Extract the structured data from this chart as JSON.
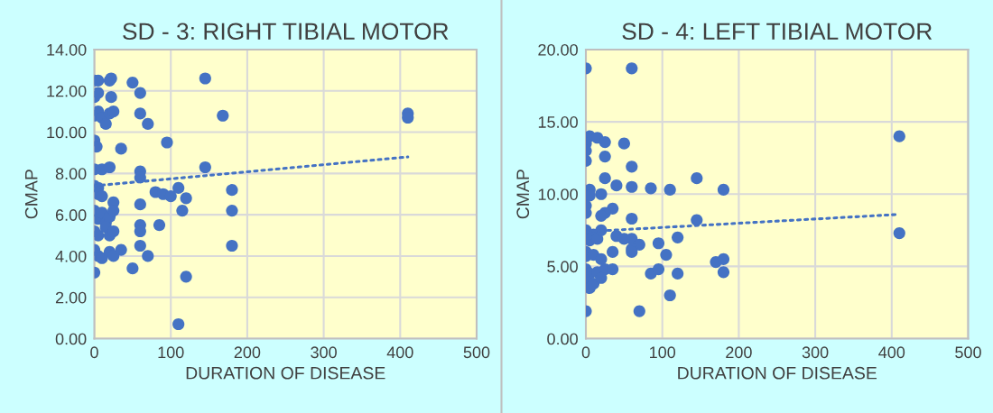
{
  "chart_data": [
    {
      "type": "scatter",
      "title": "SD - 3: RIGHT TIBIAL MOTOR",
      "xlabel": "DURATION OF DISEASE",
      "ylabel": "CMAP",
      "grid": true,
      "marker": "circle",
      "xlim": [
        0,
        500
      ],
      "xticks": [
        0,
        100,
        200,
        300,
        400,
        500
      ],
      "ylim": [
        0,
        14
      ],
      "yticks": [
        {
          "value": 0,
          "label": "0.00"
        },
        {
          "value": 2,
          "label": "2.00"
        },
        {
          "value": 4,
          "label": "4.00"
        },
        {
          "value": 6,
          "label": "6.00"
        },
        {
          "value": 8,
          "label": "8.00"
        },
        {
          "value": 10,
          "label": "10.00"
        },
        {
          "value": 12,
          "label": "12.00"
        },
        {
          "value": 14,
          "label": "14.00"
        }
      ],
      "series": [
        {
          "color": "#4472c4",
          "x": [
            0,
            5,
            20,
            22,
            50,
            145,
            0,
            5,
            22,
            60,
            0,
            5,
            10,
            15,
            20,
            25,
            60,
            70,
            168,
            410,
            410,
            0,
            3,
            35,
            95,
            0,
            10,
            20,
            60,
            60,
            145,
            0,
            5,
            5,
            10,
            25,
            80,
            90,
            100,
            110,
            115,
            120,
            180,
            180,
            0,
            5,
            10,
            15,
            20,
            25,
            60,
            0,
            5,
            15,
            20,
            25,
            60,
            60,
            85,
            0,
            5,
            10,
            20,
            25,
            35,
            60,
            70,
            180,
            0,
            50,
            120,
            110
          ],
          "values": [
            12.5,
            12.5,
            12.5,
            12.6,
            12.4,
            12.6,
            11.7,
            11.9,
            11.7,
            11.9,
            10.8,
            11,
            10.7,
            10.4,
            10.9,
            11,
            10.9,
            10.4,
            10.8,
            10.9,
            10.7,
            9.6,
            9.3,
            9.2,
            9.5,
            8.2,
            8.2,
            8.3,
            8.1,
            7.8,
            8.3,
            7.4,
            7.3,
            7,
            6.9,
            6.6,
            7.1,
            7,
            6.9,
            7.3,
            6.2,
            6.8,
            7.2,
            6.2,
            6.2,
            5.8,
            6.1,
            5.6,
            5.9,
            6.2,
            6.5,
            5.2,
            5,
            5.4,
            5,
            5.2,
            5.5,
            5.2,
            5.5,
            4.3,
            4,
            3.9,
            4.2,
            4,
            4.3,
            4.5,
            4,
            4.5,
            3.2,
            3.4,
            3,
            0.7
          ]
        },
        {
          "type": "line",
          "line_style": "dotted",
          "marker": "none",
          "color": "#4472c4",
          "x": [
            0,
            410
          ],
          "values": [
            7.4,
            8.8
          ]
        }
      ]
    },
    {
      "type": "scatter",
      "title": "SD - 4: LEFT TIBIAL MOTOR",
      "xlabel": "DURATION OF DISEASE",
      "ylabel": "CMAP",
      "grid": true,
      "marker": "circle",
      "xlim": [
        0,
        500
      ],
      "xticks": [
        0,
        100,
        200,
        300,
        400,
        500
      ],
      "ylim": [
        0,
        20
      ],
      "yticks": [
        {
          "value": 0,
          "label": "0.00"
        },
        {
          "value": 5,
          "label": "5.00"
        },
        {
          "value": 10,
          "label": "10.00"
        },
        {
          "value": 15,
          "label": "15.00"
        },
        {
          "value": 20,
          "label": "20.00"
        }
      ],
      "series": [
        {
          "color": "#4472c4",
          "x": [
            0,
            60,
            5,
            15,
            25,
            50,
            0,
            0,
            0,
            25,
            60,
            60,
            25,
            145,
            180,
            110,
            85,
            40,
            5,
            5,
            20,
            0,
            0,
            35,
            25,
            20,
            60,
            145,
            410,
            410,
            0,
            5,
            10,
            15,
            20,
            40,
            50,
            60,
            70,
            60,
            95,
            120,
            0,
            0,
            10,
            20,
            35,
            60,
            105,
            0,
            5,
            15,
            25,
            35,
            85,
            95,
            120,
            170,
            180,
            180,
            0,
            5,
            10,
            20,
            110,
            0,
            70
          ],
          "values": [
            18.7,
            18.7,
            14,
            13.9,
            13.6,
            13.5,
            13.5,
            13,
            12.3,
            12.6,
            11.9,
            10.5,
            11.1,
            11.1,
            10.3,
            10.3,
            10.4,
            10.6,
            10.3,
            9.9,
            10,
            9.2,
            8.7,
            9,
            8.7,
            8.5,
            8.3,
            8.2,
            14,
            7.3,
            7.5,
            6.8,
            7.2,
            6.9,
            7.5,
            7.1,
            6.9,
            6.9,
            6.5,
            6.2,
            6.6,
            7,
            6,
            5.7,
            5.8,
            5.5,
            6,
            6,
            5.8,
            4.8,
            4.5,
            4.6,
            4.8,
            4.8,
            4.5,
            4.8,
            4.5,
            5.3,
            5.5,
            4.6,
            4,
            3.5,
            3.8,
            4.2,
            3,
            1.9,
            1.9
          ]
        },
        {
          "type": "line",
          "line_style": "dotted",
          "marker": "none",
          "color": "#4472c4",
          "x": [
            0,
            410
          ],
          "values": [
            7.4,
            8.6
          ]
        }
      ]
    }
  ]
}
